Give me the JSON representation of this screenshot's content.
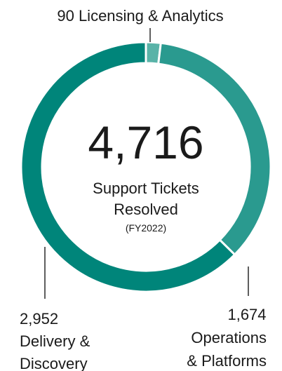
{
  "chart_data": {
    "type": "pie",
    "style": "donut",
    "total_value": "4,716",
    "center_title": "Support Tickets",
    "center_title_2": "Resolved",
    "center_note": "(FY2022)",
    "slices": [
      {
        "label": "Licensing & Analytics",
        "value": 90,
        "value_text": "90",
        "color": "#59b3a8"
      },
      {
        "label": "Operations & Platforms",
        "value": 1674,
        "value_text": "1,674",
        "label_line1": "Operations",
        "label_line2": "& Platforms",
        "color": "#2a9a8f"
      },
      {
        "label": "Delivery & Discovery",
        "value": 2952,
        "value_text": "2,952",
        "label_line1": "Delivery &",
        "label_line2": "Discovery",
        "color": "#00857a"
      }
    ]
  },
  "labels": {
    "top": "90 Licensing & Analytics"
  }
}
